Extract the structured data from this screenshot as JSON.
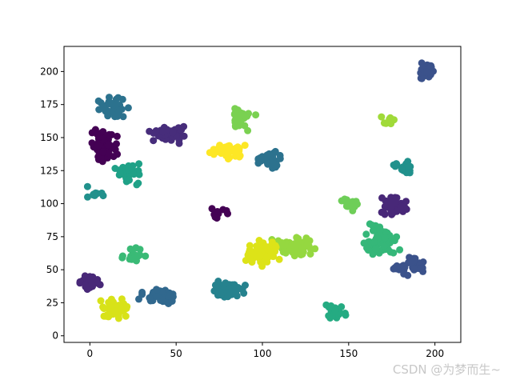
{
  "chart_data": {
    "type": "scatter",
    "title": "",
    "xlabel": "",
    "ylabel": "",
    "xlim": [
      -15,
      215
    ],
    "ylim": [
      -5,
      219
    ],
    "xticks": [
      0,
      50,
      100,
      150,
      200
    ],
    "yticks": [
      0,
      25,
      50,
      75,
      100,
      125,
      150,
      175,
      200
    ],
    "grid": false,
    "legend": "none",
    "colormap": "viridis",
    "clusters": [
      {
        "cx": 195,
        "cy": 200,
        "sx": 5,
        "sy": 5,
        "n": 40,
        "color": "#3b528b"
      },
      {
        "cx": 13,
        "cy": 173,
        "sx": 6,
        "sy": 6,
        "n": 38,
        "color": "#2c728e"
      },
      {
        "cx": 8,
        "cy": 145,
        "sx": 6,
        "sy": 8,
        "n": 70,
        "color": "#440154"
      },
      {
        "cx": 45,
        "cy": 153,
        "sx": 8,
        "sy": 5,
        "n": 45,
        "color": "#472d7b"
      },
      {
        "cx": 88,
        "cy": 165,
        "sx": 6,
        "sy": 7,
        "n": 32,
        "color": "#7ad151"
      },
      {
        "cx": 172,
        "cy": 163,
        "sx": 4,
        "sy": 4,
        "n": 8,
        "color": "#a0da39"
      },
      {
        "cx": 80,
        "cy": 140,
        "sx": 7,
        "sy": 5,
        "n": 45,
        "color": "#fde725"
      },
      {
        "cx": 104,
        "cy": 133,
        "sx": 6,
        "sy": 5,
        "n": 35,
        "color": "#2c728e"
      },
      {
        "cx": 183,
        "cy": 127,
        "sx": 5,
        "sy": 4,
        "n": 20,
        "color": "#21918c"
      },
      {
        "cx": 23,
        "cy": 123,
        "sx": 6,
        "sy": 6,
        "n": 30,
        "color": "#1fa187"
      },
      {
        "cx": 3,
        "cy": 107,
        "sx": 5,
        "sy": 4,
        "n": 12,
        "color": "#21918c"
      },
      {
        "cx": 75,
        "cy": 92,
        "sx": 5,
        "sy": 4,
        "n": 9,
        "color": "#440154"
      },
      {
        "cx": 150,
        "cy": 100,
        "sx": 5,
        "sy": 5,
        "n": 14,
        "color": "#6ece58"
      },
      {
        "cx": 175,
        "cy": 97,
        "sx": 7,
        "sy": 6,
        "n": 45,
        "color": "#482878"
      },
      {
        "cx": 168,
        "cy": 72,
        "sx": 8,
        "sy": 10,
        "n": 70,
        "color": "#35b779"
      },
      {
        "cx": 120,
        "cy": 67,
        "sx": 10,
        "sy": 6,
        "n": 55,
        "color": "#95d840"
      },
      {
        "cx": 100,
        "cy": 62,
        "sx": 7,
        "sy": 7,
        "n": 75,
        "color": "#dde318"
      },
      {
        "cx": 185,
        "cy": 53,
        "sx": 7,
        "sy": 5,
        "n": 38,
        "color": "#3b528b"
      },
      {
        "cx": 25,
        "cy": 62,
        "sx": 5,
        "sy": 5,
        "n": 16,
        "color": "#3aba76"
      },
      {
        "cx": 0,
        "cy": 41,
        "sx": 5,
        "sy": 4,
        "n": 40,
        "color": "#482878"
      },
      {
        "cx": 40,
        "cy": 30,
        "sx": 8,
        "sy": 5,
        "n": 48,
        "color": "#31688e"
      },
      {
        "cx": 80,
        "cy": 35,
        "sx": 7,
        "sy": 5,
        "n": 65,
        "color": "#26828e"
      },
      {
        "cx": 15,
        "cy": 20,
        "sx": 6,
        "sy": 6,
        "n": 55,
        "color": "#d8e219"
      },
      {
        "cx": 143,
        "cy": 19,
        "sx": 5,
        "sy": 5,
        "n": 26,
        "color": "#25ab82"
      }
    ]
  },
  "watermark": "CSDN @为梦而生~"
}
